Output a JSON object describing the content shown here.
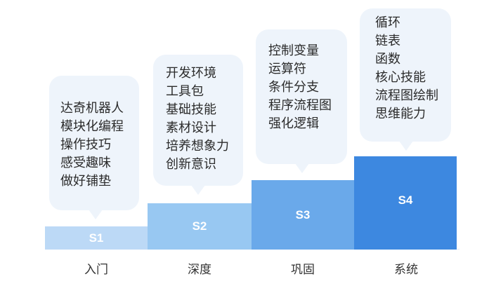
{
  "stages": [
    {
      "code": "S1",
      "name": "入门",
      "color": "#bcd9f6",
      "items": [
        "达奇机器人",
        "模块化编程",
        "操作技巧",
        "感受趣味",
        "做好铺垫"
      ]
    },
    {
      "code": "S2",
      "name": "深度",
      "color": "#98c8f2",
      "items": [
        "开发环境",
        "工具包",
        "基础技能",
        "素材设计",
        "培养想象力",
        "创新意识"
      ]
    },
    {
      "code": "S3",
      "name": "巩固",
      "color": "#6aa9ea",
      "items": [
        "控制变量",
        "运算符",
        "条件分支",
        "程序流程图",
        "强化逻辑"
      ]
    },
    {
      "code": "S4",
      "name": "系统",
      "color": "#3d88e0",
      "items": [
        "循环",
        "链表",
        "函数",
        "核心技能",
        "流程图绘制",
        "思维能力"
      ]
    }
  ]
}
